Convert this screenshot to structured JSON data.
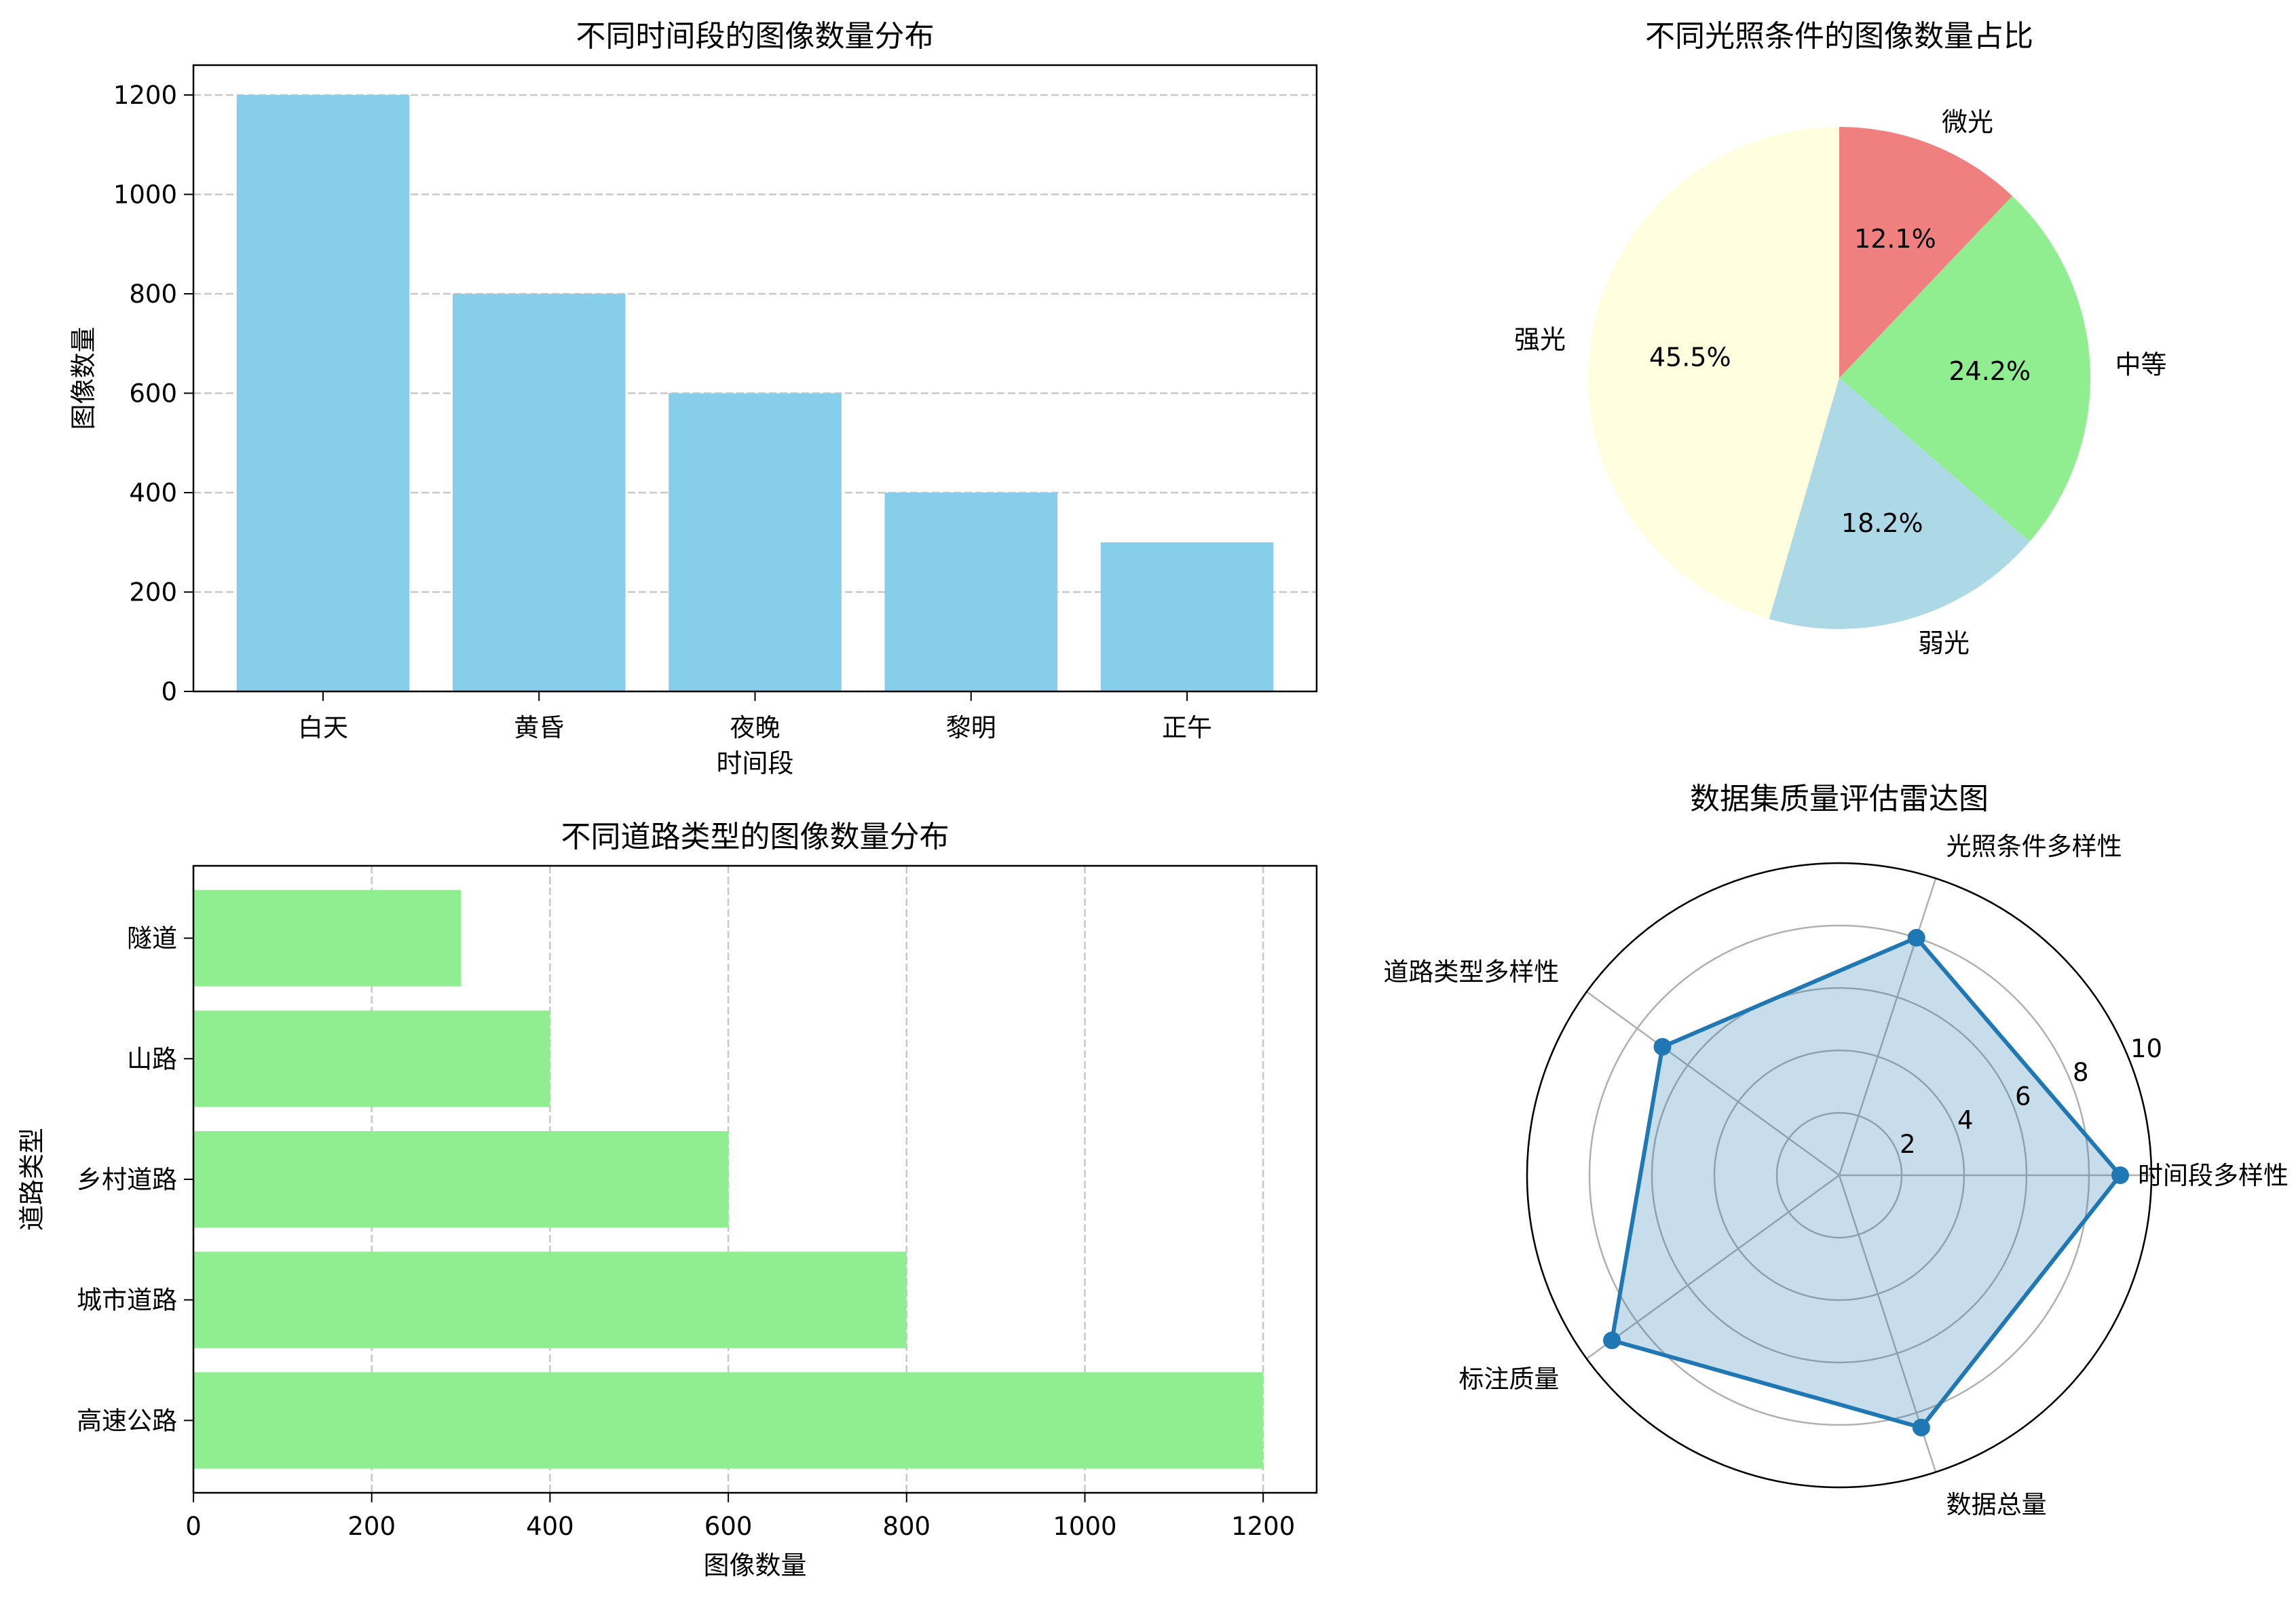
{
  "chart_data": [
    {
      "type": "bar",
      "title": "不同时间段的图像数量分布",
      "xlabel": "时间段",
      "ylabel": "图像数量",
      "categories": [
        "白天",
        "黄昏",
        "夜晚",
        "黎明",
        "正午"
      ],
      "values": [
        1200,
        800,
        600,
        400,
        300
      ],
      "ylim": [
        0,
        1260
      ],
      "yticks": [
        0,
        200,
        400,
        600,
        800,
        1000,
        1200
      ],
      "grid": "y-dashed",
      "color": "#87CEEB"
    },
    {
      "type": "pie",
      "title": "不同光照条件的图像数量占比",
      "labels": [
        "强光",
        "弱光",
        "中等",
        "微光"
      ],
      "values": [
        45.5,
        18.2,
        24.2,
        12.1
      ],
      "pct_labels": [
        "45.5%",
        "18.2%",
        "24.2%",
        "12.1%"
      ],
      "colors": [
        "#FFFFE0",
        "#ADD8E6",
        "#90EE90",
        "#F08080"
      ]
    },
    {
      "type": "bar",
      "orientation": "horizontal",
      "title": "不同道路类型的图像数量分布",
      "xlabel": "图像数量",
      "ylabel": "道路类型",
      "categories": [
        "高速公路",
        "城市道路",
        "乡村道路",
        "山路",
        "隧道"
      ],
      "values": [
        1200,
        800,
        600,
        400,
        300
      ],
      "xlim": [
        0,
        1260
      ],
      "xticks": [
        0,
        200,
        400,
        600,
        800,
        1000,
        1200
      ],
      "grid": "x-dashed",
      "color": "#90EE90"
    },
    {
      "type": "radar",
      "title": "数据集质量评估雷达图",
      "categories": [
        "时间段多样性",
        "光照条件多样性",
        "道路类型多样性",
        "标注质量",
        "数据总量"
      ],
      "values": [
        9,
        8,
        7,
        9,
        8.5
      ],
      "rlim": [
        0,
        10
      ],
      "rticks": [
        2,
        4,
        6,
        8,
        10
      ],
      "color": "#1F77B4"
    }
  ]
}
